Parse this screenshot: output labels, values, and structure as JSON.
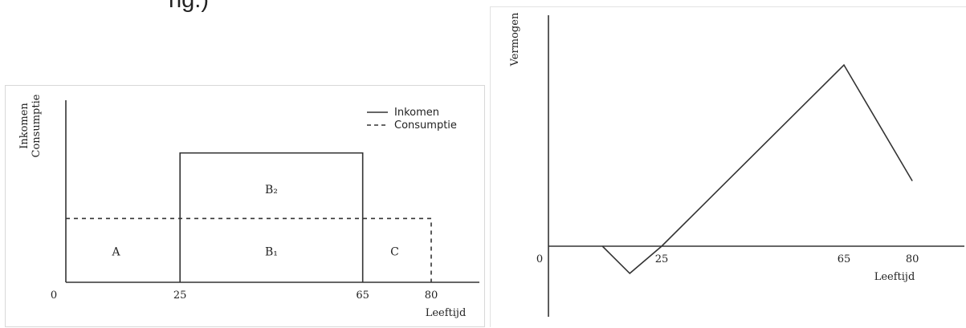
{
  "page": {
    "top_fragment": "ng.)"
  },
  "chart_data": [
    {
      "type": "line",
      "xlabel": "Leeftijd",
      "ylabel": [
        "Inkomen",
        "Consumptie"
      ],
      "x_ticks": [
        "0",
        "25",
        "65",
        "80"
      ],
      "xlim": [
        0,
        82
      ],
      "ylim": [
        0,
        100
      ],
      "legend_position": "top-right",
      "series": [
        {
          "name": "Inkomen",
          "style": "solid",
          "x": [
            25,
            25,
            65,
            65
          ],
          "y": [
            0,
            75,
            75,
            0
          ]
        },
        {
          "name": "Consumptie",
          "style": "dashed",
          "x": [
            0,
            80,
            80
          ],
          "y": [
            37,
            37,
            0
          ]
        }
      ],
      "region_labels": [
        {
          "text": "A",
          "x": 11,
          "y": 18
        },
        {
          "text": "B₁",
          "x": 45,
          "y": 18
        },
        {
          "text": "B₂",
          "x": 45,
          "y": 54
        },
        {
          "text": "C",
          "x": 72,
          "y": 18
        }
      ]
    },
    {
      "type": "line",
      "xlabel": "Leeftijd",
      "ylabel": "Vermogen",
      "x_ticks": [
        "0",
        "25",
        "65",
        "80"
      ],
      "xlim": [
        0,
        100
      ],
      "ylim": [
        -50,
        100
      ],
      "series": [
        {
          "style": "solid",
          "x": [
            12,
            18,
            25,
            65,
            80
          ],
          "y": [
            0,
            -15,
            0,
            100,
            36
          ]
        }
      ]
    }
  ]
}
